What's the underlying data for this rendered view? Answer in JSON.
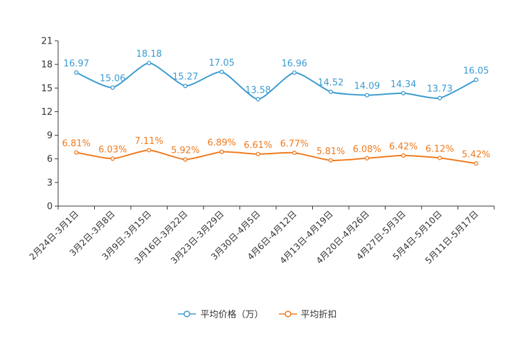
{
  "chart_data": {
    "type": "line",
    "categories": [
      "2月24日-3月1日",
      "3月2日-3月8日",
      "3月9日-3月15日",
      "3月16日-3月22日",
      "3月23日-3月29日",
      "3月30日-4月5日",
      "4月6日-4月12日",
      "4月13日-4月19日",
      "4月20日-4月26日",
      "4月27日-5月3日",
      "5月4日-5月10日",
      "5月11日-5月17日"
    ],
    "series": [
      {
        "name": "平均价格（万）",
        "color": "#3a9bd1",
        "values": [
          16.97,
          15.06,
          18.18,
          15.27,
          17.05,
          13.58,
          16.96,
          14.52,
          14.09,
          14.34,
          13.73,
          16.05
        ],
        "labels": [
          "16.97",
          "15.06",
          "18.18",
          "15.27",
          "17.05",
          "13.58",
          "16.96",
          "14.52",
          "14.09",
          "14.34",
          "13.73",
          "16.05"
        ]
      },
      {
        "name": "平均折扣",
        "color": "#f07a1d",
        "values": [
          6.81,
          6.03,
          7.11,
          5.92,
          6.89,
          6.61,
          6.77,
          5.81,
          6.08,
          6.42,
          6.12,
          5.42
        ],
        "labels": [
          "6.81%",
          "6.03%",
          "7.11%",
          "5.92%",
          "6.89%",
          "6.61%",
          "6.77%",
          "5.81%",
          "6.08%",
          "6.42%",
          "6.12%",
          "5.42%"
        ]
      }
    ],
    "yticks": [
      "0",
      "3",
      "6",
      "9",
      "12",
      "15",
      "18",
      "21"
    ],
    "ylim": [
      0,
      21
    ],
    "smooth": true,
    "legend": "bottom-center"
  }
}
